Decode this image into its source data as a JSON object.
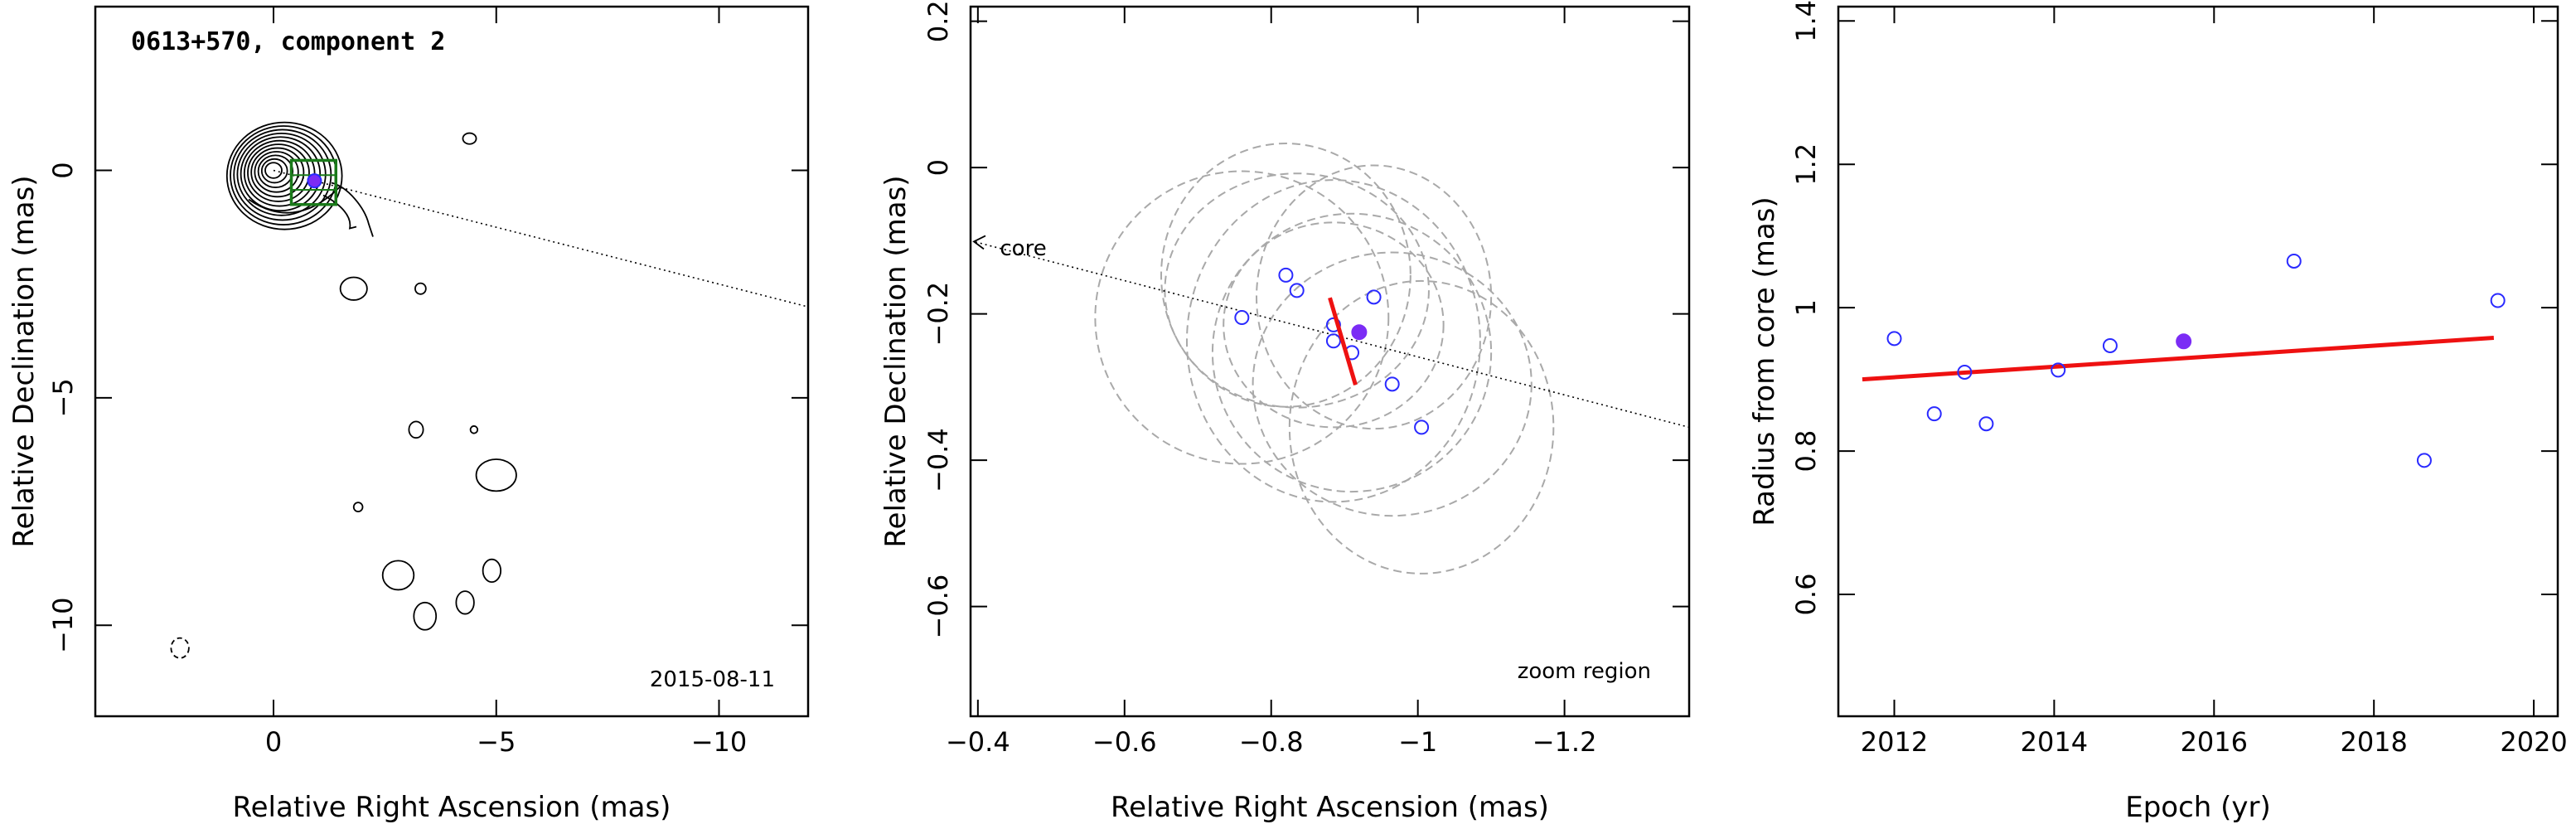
{
  "chart_data": [
    {
      "type": "contour",
      "title": "0613+570, component 2",
      "date_label": "2015-08-11",
      "xlabel": "Relative Right Ascension (mas)",
      "ylabel": "Relative Declination (mas)",
      "xlim": [
        4,
        -12
      ],
      "ylim": [
        -12,
        3.6
      ],
      "xticks": [
        0,
        -5,
        -10
      ],
      "yticks": [
        0,
        -5,
        -10
      ],
      "core": {
        "x": 0,
        "y": 0
      },
      "component": {
        "x": -0.92,
        "y": -0.23
      },
      "zoom_box": {
        "x": [
          -0.4,
          -1.4
        ],
        "y": [
          -0.75,
          0.22
        ]
      },
      "jet_line": {
        "from": {
          "x": 0,
          "y": 0
        },
        "to": {
          "x": -12,
          "y": -3.0
        }
      },
      "islands": [
        {
          "x": -1.8,
          "y": -2.6,
          "rx": 0.3,
          "ry": 0.25
        },
        {
          "x": -3.3,
          "y": -2.6,
          "rx": 0.12,
          "ry": 0.12
        },
        {
          "x": -4.4,
          "y": 0.7,
          "rx": 0.15,
          "ry": 0.12
        },
        {
          "x": -3.2,
          "y": -5.7,
          "rx": 0.16,
          "ry": 0.18
        },
        {
          "x": -4.5,
          "y": -5.7,
          "rx": 0.08,
          "ry": 0.08
        },
        {
          "x": -5.0,
          "y": -6.7,
          "rx": 0.45,
          "ry": 0.35
        },
        {
          "x": -1.9,
          "y": -7.4,
          "rx": 0.1,
          "ry": 0.1
        },
        {
          "x": -2.8,
          "y": -8.9,
          "rx": 0.35,
          "ry": 0.32
        },
        {
          "x": -4.9,
          "y": -8.8,
          "rx": 0.2,
          "ry": 0.25
        },
        {
          "x": -3.4,
          "y": -9.8,
          "rx": 0.25,
          "ry": 0.3
        },
        {
          "x": -4.3,
          "y": -9.5,
          "rx": 0.2,
          "ry": 0.25
        },
        {
          "x": 2.1,
          "y": -10.5,
          "rx": 0.2,
          "ry": 0.22
        }
      ]
    },
    {
      "type": "scatter",
      "title": "",
      "xlabel": "Relative Right Ascension (mas)",
      "ylabel": "Relative Declination (mas)",
      "xlim": [
        -0.39,
        -1.37
      ],
      "ylim": [
        -0.75,
        0.22
      ],
      "xticks": [
        -0.4,
        -0.6,
        -0.8,
        -1,
        -1.2
      ],
      "xtick_labels": [
        "−0.4",
        "−0.6",
        "−0.8",
        "−1",
        "−1.2"
      ],
      "yticks": [
        0.2,
        0,
        -0.2,
        -0.4,
        -0.6
      ],
      "ytick_labels": [
        "0.2",
        "0",
        "−0.2",
        "−0.4",
        "−0.6"
      ],
      "core_label": "core",
      "zoom_label": "zoom region",
      "points": [
        {
          "x": -0.76,
          "y": -0.205
        },
        {
          "x": -0.82,
          "y": -0.147
        },
        {
          "x": -0.835,
          "y": -0.168
        },
        {
          "x": -0.885,
          "y": -0.215
        },
        {
          "x": -0.885,
          "y": -0.237
        },
        {
          "x": -0.91,
          "y": -0.253
        },
        {
          "x": -0.94,
          "y": -0.177
        },
        {
          "x": -0.965,
          "y": -0.296
        },
        {
          "x": -1.005,
          "y": -0.355
        }
      ],
      "mean": {
        "x": -0.92,
        "y": -0.225
      },
      "motion_vector": {
        "from": {
          "x": -0.88,
          "y": -0.178
        },
        "to": {
          "x": -0.915,
          "y": -0.297
        }
      },
      "jet_line": {
        "from": {
          "x": -0.39,
          "y": -0.1
        },
        "to": {
          "x": -1.37,
          "y": -0.355
        }
      },
      "error_ellipses": [
        {
          "x": -0.76,
          "y": -0.205,
          "rx": 0.2,
          "ry": 0.2
        },
        {
          "x": -0.82,
          "y": -0.147,
          "rx": 0.17,
          "ry": 0.18
        },
        {
          "x": -0.835,
          "y": -0.168,
          "rx": 0.18,
          "ry": 0.16
        },
        {
          "x": -0.885,
          "y": -0.215,
          "rx": 0.15,
          "ry": 0.14
        },
        {
          "x": -0.885,
          "y": -0.237,
          "rx": 0.2,
          "ry": 0.22
        },
        {
          "x": -0.91,
          "y": -0.253,
          "rx": 0.19,
          "ry": 0.19
        },
        {
          "x": -0.94,
          "y": -0.177,
          "rx": 0.16,
          "ry": 0.18
        },
        {
          "x": -0.965,
          "y": -0.296,
          "rx": 0.19,
          "ry": 0.18
        },
        {
          "x": -1.005,
          "y": -0.355,
          "rx": 0.18,
          "ry": 0.2
        }
      ]
    },
    {
      "type": "scatter",
      "title": "",
      "xlabel": "Epoch (yr)",
      "ylabel": "Radius from core (mas)",
      "xlim": [
        2011.3,
        2020.3
      ],
      "ylim": [
        0.43,
        1.42
      ],
      "xticks": [
        2012,
        2014,
        2016,
        2018,
        2020
      ],
      "yticks": [
        0.6,
        0.8,
        1,
        1.2,
        1.4
      ],
      "ytick_labels": [
        "0.6",
        "0.8",
        "1",
        "1.2",
        "1.4"
      ],
      "points": [
        {
          "x": 2012.0,
          "y": 0.957
        },
        {
          "x": 2012.5,
          "y": 0.852
        },
        {
          "x": 2012.88,
          "y": 0.91
        },
        {
          "x": 2013.15,
          "y": 0.838
        },
        {
          "x": 2014.05,
          "y": 0.913
        },
        {
          "x": 2014.7,
          "y": 0.947
        },
        {
          "x": 2017.0,
          "y": 1.065
        },
        {
          "x": 2018.63,
          "y": 0.787
        },
        {
          "x": 2019.55,
          "y": 1.01
        }
      ],
      "mean": {
        "x": 2015.62,
        "y": 0.953
      },
      "fit_line": {
        "x": [
          2011.6,
          2019.5
        ],
        "y": [
          0.9,
          0.958
        ]
      }
    }
  ]
}
